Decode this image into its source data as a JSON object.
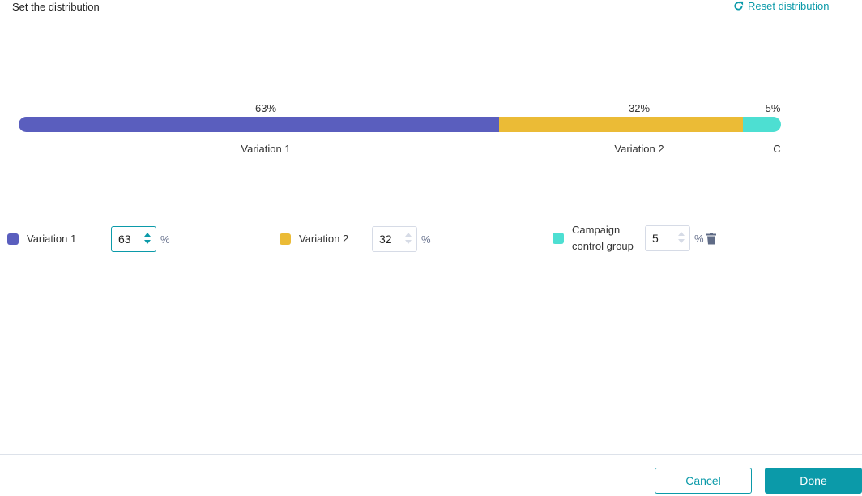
{
  "header": {
    "title": "Set the distribution",
    "reset_label": "Reset distribution",
    "reset_icon": "refresh-icon"
  },
  "distribution": [
    {
      "name": "Variation 1",
      "bar_label": "Variation 1",
      "percent": 63,
      "percent_label": "63%",
      "color": "#5a5ebe",
      "value": "63"
    },
    {
      "name": "Variation 2",
      "bar_label": "Variation 2",
      "percent": 32,
      "percent_label": "32%",
      "color": "#ebbb36",
      "value": "32"
    },
    {
      "name": "Campaign control group",
      "bar_label": "C",
      "percent": 5,
      "percent_label": "5%",
      "color": "#4ddfd2",
      "value": "5"
    }
  ],
  "unit": "%",
  "footer": {
    "cancel": "Cancel",
    "done": "Done"
  },
  "accent": "#0b9aa9"
}
